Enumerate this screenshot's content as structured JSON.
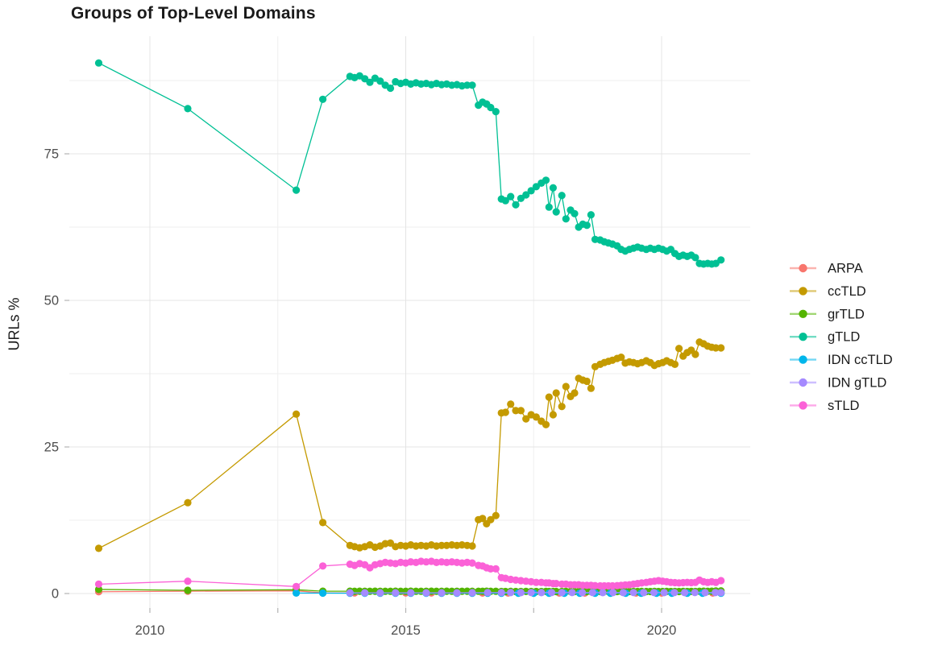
{
  "title": "Groups of Top-Level Domains",
  "chart_data": {
    "type": "line",
    "title": "Groups of Top-Level Domains",
    "xlabel": "",
    "ylabel": "URLs %",
    "grid": true,
    "legend_position": "right",
    "xlim": [
      2008.4,
      2021.8
    ],
    "ylim": [
      -2.5,
      95
    ],
    "x_tick_labels": [
      "2010",
      "2015",
      "2020"
    ],
    "x_ticks_major": [
      2010,
      2015,
      2020
    ],
    "x_ticks_minor": [
      2012.5,
      2017.5
    ],
    "y_tick_labels": [
      "0",
      "25",
      "50",
      "75"
    ],
    "y_ticks_major": [
      0,
      25,
      50,
      75
    ],
    "y_ticks_minor": [
      12.5,
      37.5,
      62.5,
      87.5
    ],
    "x": [
      2009,
      2010.74,
      2012.86,
      2013.38,
      2013.91,
      2014.0,
      2014.1,
      2014.2,
      2014.3,
      2014.4,
      2014.5,
      2014.6,
      2014.7,
      2014.8,
      2014.9,
      2015.0,
      2015.1,
      2015.2,
      2015.3,
      2015.4,
      2015.5,
      2015.6,
      2015.7,
      2015.8,
      2015.9,
      2016.0,
      2016.1,
      2016.2,
      2016.3,
      2016.42,
      2016.5,
      2016.58,
      2016.66,
      2016.76,
      2016.87,
      2016.95,
      2017.05,
      2017.15,
      2017.25,
      2017.35,
      2017.45,
      2017.55,
      2017.65,
      2017.74,
      2017.8,
      2017.88,
      2017.94,
      2018.05,
      2018.13,
      2018.22,
      2018.3,
      2018.38,
      2018.46,
      2018.54,
      2018.62,
      2018.7,
      2018.8,
      2018.88,
      2018.96,
      2019.04,
      2019.13,
      2019.21,
      2019.29,
      2019.37,
      2019.45,
      2019.53,
      2019.61,
      2019.7,
      2019.78,
      2019.86,
      2019.94,
      2020.02,
      2020.1,
      2020.18,
      2020.26,
      2020.34,
      2020.42,
      2020.5,
      2020.58,
      2020.66,
      2020.74,
      2020.82,
      2020.9,
      2020.98,
      2021.06,
      2021.16
    ],
    "series": [
      {
        "name": "ARPA",
        "color": "#F8766D",
        "x": [
          2009,
          2010.74,
          2012.86,
          2013.38,
          2014,
          2014.5,
          2015,
          2015.5,
          2016,
          2016.5,
          2017,
          2017.5,
          2018,
          2018.5,
          2019,
          2019.5,
          2020,
          2020.5,
          2021,
          2021.16
        ],
        "values": [
          0.3,
          0.4,
          0.45,
          0.12,
          0.1,
          0.1,
          0.1,
          0.1,
          0.1,
          0.08,
          0.08,
          0.08,
          0.08,
          0.08,
          0.08,
          0.08,
          0.08,
          0.08,
          0.08,
          0.08
        ]
      },
      {
        "name": "ccTLD",
        "color": "#C49A00",
        "values": [
          7.7,
          15.5,
          30.6,
          12.1,
          8.2,
          8.0,
          7.8,
          8.0,
          8.3,
          7.9,
          8.1,
          8.5,
          8.6,
          8.0,
          8.2,
          8.1,
          8.3,
          8.1,
          8.2,
          8.1,
          8.3,
          8.1,
          8.2,
          8.2,
          8.3,
          8.2,
          8.3,
          8.2,
          8.1,
          12.6,
          12.8,
          11.9,
          12.6,
          13.3,
          30.8,
          30.9,
          32.3,
          31.2,
          31.2,
          29.8,
          30.5,
          30.1,
          29.4,
          28.8,
          33.5,
          30.5,
          34.2,
          31.9,
          35.3,
          33.6,
          34.2,
          36.7,
          36.4,
          36.2,
          35.0,
          38.7,
          39.1,
          39.4,
          39.6,
          39.8,
          40.1,
          40.3,
          39.3,
          39.5,
          39.4,
          39.2,
          39.4,
          39.7,
          39.4,
          38.9,
          39.2,
          39.4,
          39.7,
          39.4,
          39.1,
          41.8,
          40.5,
          41.1,
          41.5,
          40.8,
          42.9,
          42.6,
          42.2,
          42.0,
          41.9,
          41.9
        ]
      },
      {
        "name": "grTLD",
        "color": "#53B400",
        "values": [
          0.7,
          0.55,
          0.65,
          0.4,
          0.4,
          0.38,
          0.4,
          0.39,
          0.38,
          0.4,
          0.38,
          0.39,
          0.38,
          0.4,
          0.38,
          0.39,
          0.4,
          0.38,
          0.39,
          0.38,
          0.4,
          0.39,
          0.38,
          0.4,
          0.38,
          0.39,
          0.38,
          0.4,
          0.39,
          0.38,
          0.38,
          0.4,
          0.39,
          0.38,
          0.35,
          0.35,
          0.36,
          0.35,
          0.34,
          0.36,
          0.35,
          0.34,
          0.35,
          0.36,
          0.35,
          0.34,
          0.35,
          0.35,
          0.36,
          0.35,
          0.34,
          0.35,
          0.36,
          0.35,
          0.34,
          0.35,
          0.35,
          0.36,
          0.35,
          0.35,
          0.34,
          0.36,
          0.35,
          0.35,
          0.34,
          0.35,
          0.36,
          0.35,
          0.35,
          0.36,
          0.35,
          0.35,
          0.36,
          0.35,
          0.34,
          0.35,
          0.36,
          0.35,
          0.36,
          0.35,
          0.38,
          0.4,
          0.38,
          0.4,
          0.42,
          0.45
        ]
      },
      {
        "name": "gTLD",
        "color": "#00C094",
        "values": [
          90.5,
          82.7,
          68.8,
          84.3,
          88.2,
          88.0,
          88.3,
          87.8,
          87.2,
          87.9,
          87.4,
          86.7,
          86.2,
          87.3,
          87.0,
          87.2,
          86.9,
          87.1,
          86.9,
          87.0,
          86.8,
          87.0,
          86.8,
          86.9,
          86.7,
          86.8,
          86.6,
          86.7,
          86.7,
          83.3,
          83.8,
          83.5,
          82.9,
          82.2,
          67.3,
          67.0,
          67.7,
          66.3,
          67.4,
          68.0,
          68.7,
          69.4,
          70.0,
          70.5,
          65.9,
          69.2,
          65.1,
          67.9,
          63.9,
          65.4,
          64.8,
          62.5,
          63.0,
          62.8,
          64.6,
          60.4,
          60.3,
          60.0,
          59.8,
          59.6,
          59.3,
          58.7,
          58.4,
          58.7,
          58.9,
          59.1,
          58.9,
          58.7,
          58.9,
          58.7,
          58.9,
          58.7,
          58.4,
          58.7,
          58.0,
          57.5,
          57.7,
          57.5,
          57.7,
          57.3,
          56.3,
          56.2,
          56.3,
          56.2,
          56.3,
          56.9
        ]
      },
      {
        "name": "IDN ccTLD",
        "color": "#00B6EB",
        "x": [
          2012.86,
          2013.38,
          2013.91,
          2014.2,
          2014.5,
          2014.8,
          2015.1,
          2015.4,
          2015.7,
          2016.0,
          2016.3,
          2016.6,
          2016.87,
          2017.2,
          2017.5,
          2017.8,
          2018.1,
          2018.4,
          2018.7,
          2019.0,
          2019.3,
          2019.6,
          2019.9,
          2020.2,
          2020.5,
          2020.8,
          2021.16
        ],
        "values": [
          0.08,
          0.07,
          0.06,
          0.06,
          0.06,
          0.06,
          0.06,
          0.06,
          0.06,
          0.06,
          0.06,
          0.06,
          0.05,
          0.05,
          0.05,
          0.05,
          0.05,
          0.05,
          0.05,
          0.05,
          0.05,
          0.05,
          0.05,
          0.05,
          0.05,
          0.05,
          0.05
        ]
      },
      {
        "name": "IDN gTLD",
        "color": "#A58AFF",
        "x": [
          2013.91,
          2014.2,
          2014.5,
          2014.8,
          2015.1,
          2015.4,
          2015.7,
          2016.0,
          2016.3,
          2016.6,
          2016.87,
          2017.05,
          2017.25,
          2017.45,
          2017.65,
          2017.85,
          2018.05,
          2018.25,
          2018.45,
          2018.65,
          2018.85,
          2019.05,
          2019.25,
          2019.45,
          2019.65,
          2019.85,
          2020.05,
          2020.25,
          2020.45,
          2020.65,
          2020.85,
          2021.05,
          2021.16
        ],
        "values": [
          0.12,
          0.12,
          0.12,
          0.13,
          0.12,
          0.13,
          0.12,
          0.13,
          0.14,
          0.15,
          0.15,
          0.16,
          0.15,
          0.16,
          0.15,
          0.16,
          0.15,
          0.16,
          0.15,
          0.16,
          0.15,
          0.16,
          0.15,
          0.16,
          0.15,
          0.16,
          0.15,
          0.16,
          0.15,
          0.16,
          0.15,
          0.16,
          0.15
        ]
      },
      {
        "name": "sTLD",
        "color": "#FB61D7",
        "values": [
          1.6,
          2.1,
          1.2,
          4.7,
          5.0,
          4.8,
          5.1,
          4.9,
          4.4,
          4.9,
          5.1,
          5.3,
          5.2,
          5.1,
          5.3,
          5.2,
          5.4,
          5.3,
          5.5,
          5.4,
          5.5,
          5.3,
          5.4,
          5.3,
          5.4,
          5.3,
          5.2,
          5.3,
          5.2,
          4.8,
          4.7,
          4.4,
          4.2,
          4.2,
          2.7,
          2.6,
          2.4,
          2.3,
          2.2,
          2.1,
          2.0,
          1.9,
          1.9,
          1.8,
          1.8,
          1.7,
          1.7,
          1.6,
          1.6,
          1.5,
          1.5,
          1.5,
          1.4,
          1.4,
          1.4,
          1.35,
          1.3,
          1.3,
          1.3,
          1.3,
          1.35,
          1.4,
          1.45,
          1.5,
          1.6,
          1.7,
          1.8,
          1.9,
          2.0,
          2.1,
          2.2,
          2.1,
          2.0,
          1.9,
          1.85,
          1.8,
          1.85,
          1.9,
          1.85,
          1.9,
          2.3,
          2.0,
          1.9,
          2.0,
          1.9,
          2.2
        ]
      }
    ],
    "legend_items": [
      "ARPA",
      "ccTLD",
      "grTLD",
      "gTLD",
      "IDN ccTLD",
      "IDN gTLD",
      "sTLD"
    ]
  },
  "style": {
    "background": "#FFFFFF",
    "grid_major": "#E4E4E4",
    "grid_minor": "#EFEFEF",
    "tick_color": "#B3B3B3",
    "tick_label_color": "#4D4D4D",
    "text_color": "#1A1A1A"
  }
}
